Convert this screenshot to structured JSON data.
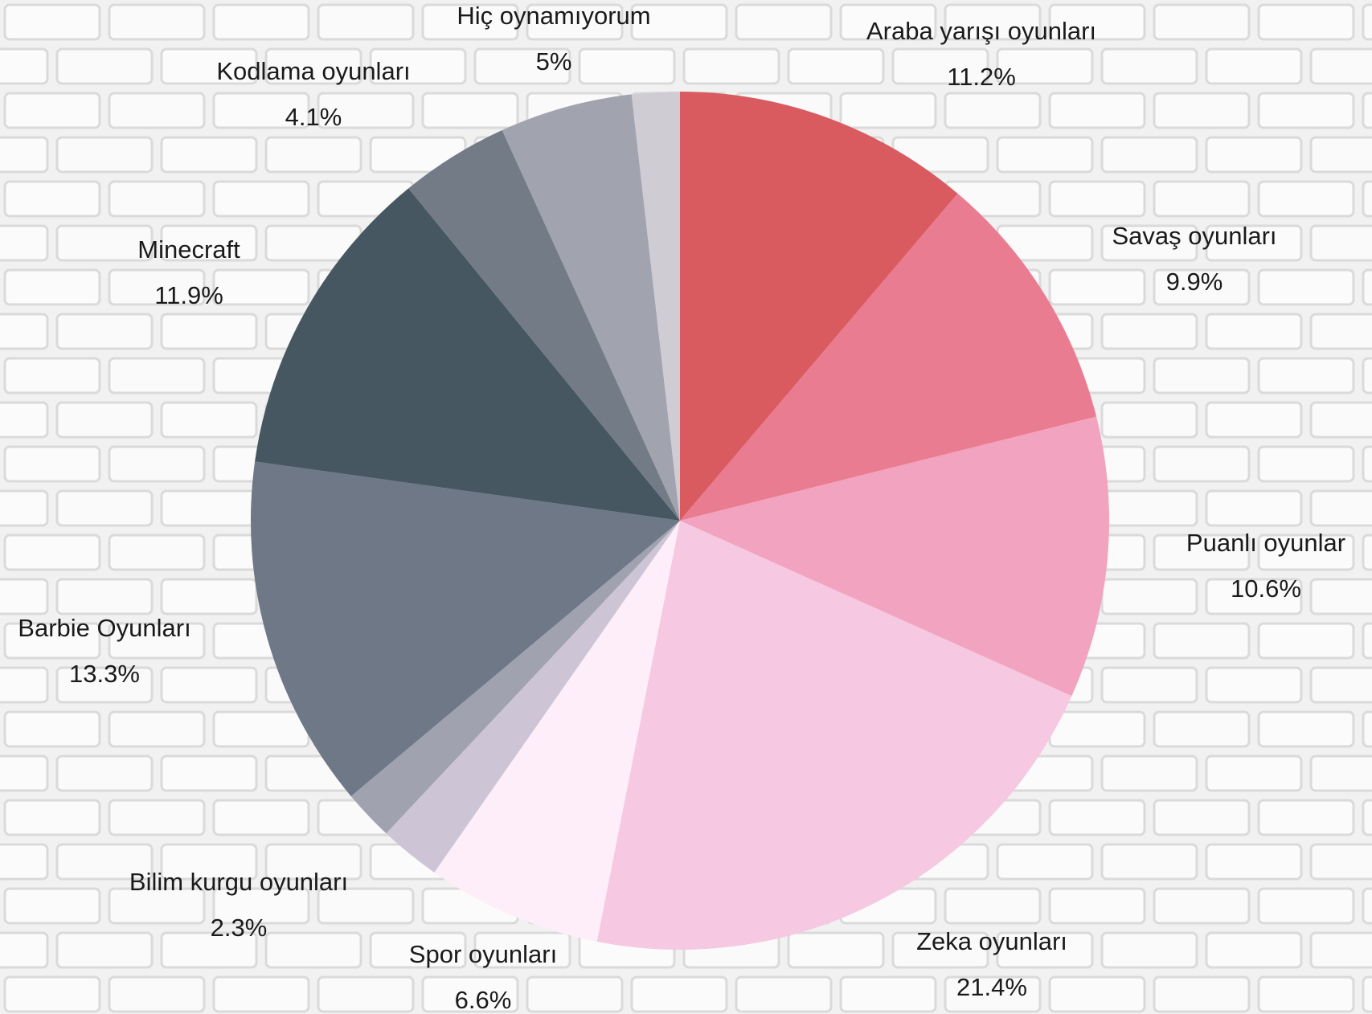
{
  "chart_data": {
    "type": "pie",
    "categories": [
      "Araba yarışı oyunları",
      "Savaş oyunları",
      "Puanlı oyunlar",
      "Zeka oyunları",
      "Spor oyunları",
      "Bilim kurgu oyunları",
      null,
      "Barbie Oyunları",
      "Minecraft",
      "Kodlama oyunları",
      "Hiç oynamıyorum",
      null
    ],
    "values": [
      11.2,
      9.9,
      10.6,
      21.4,
      6.6,
      2.3,
      1.9,
      13.3,
      11.9,
      4.1,
      5,
      1.8
    ],
    "value_labels": [
      "11.2%",
      "9.9%",
      "10.6%",
      "21.4%",
      "6.6%",
      "2.3%",
      null,
      "13.3%",
      "11.9%",
      "4.1%",
      "5%",
      null
    ],
    "colors": [
      "#d95b5f",
      "#e97c91",
      "#f2a3bf",
      "#f6c8e1",
      "#fdeefa",
      "#cdc5d5",
      "#a0a2b0",
      "#6f7886",
      "#475761",
      "#737b87",
      "#a1a3ae",
      "#cfccd4"
    ]
  }
}
